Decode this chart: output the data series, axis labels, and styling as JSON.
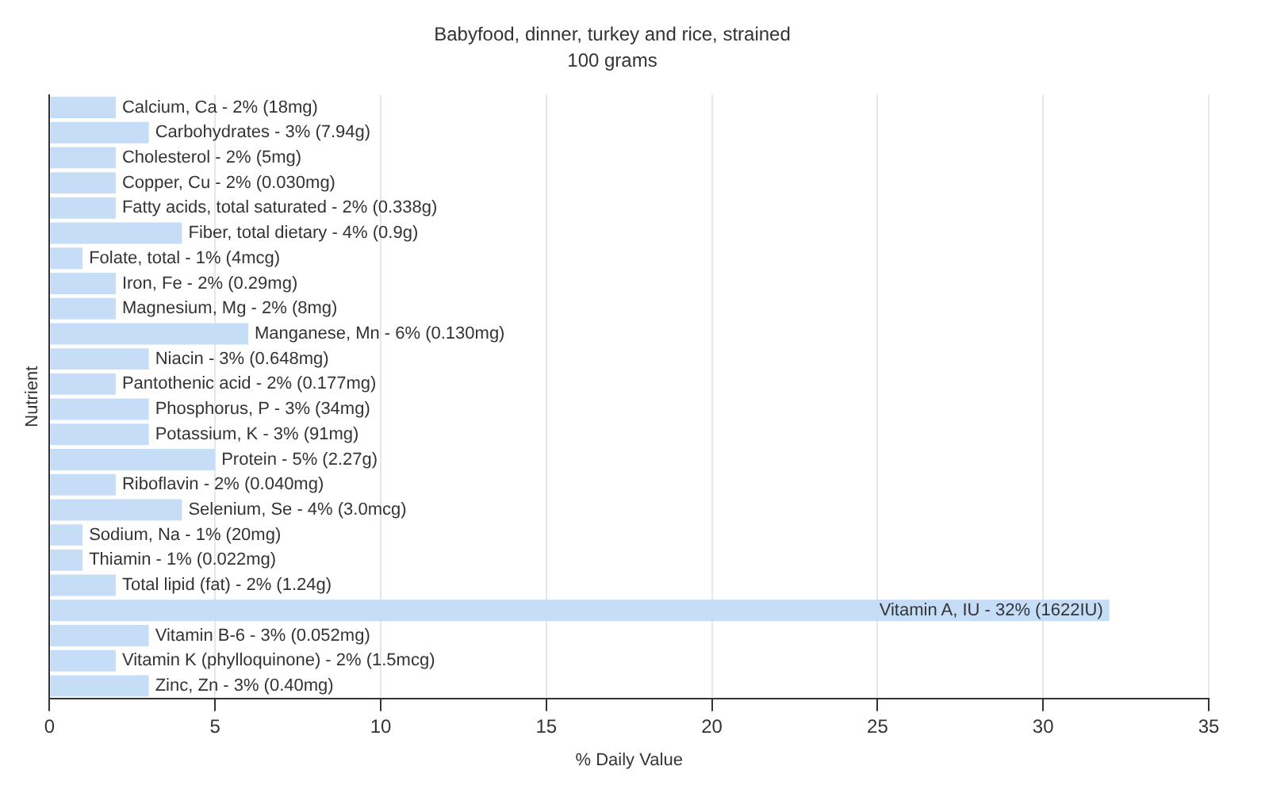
{
  "chart_data": {
    "type": "bar",
    "orientation": "horizontal",
    "title": "Babyfood, dinner, turkey and rice, strained",
    "subtitle": "100 grams",
    "xlabel": "% Daily Value",
    "ylabel": "Nutrient",
    "values": [
      2,
      3,
      2,
      2,
      2,
      4,
      1,
      2,
      2,
      6,
      3,
      2,
      3,
      3,
      5,
      2,
      4,
      1,
      1,
      2,
      32,
      3,
      2,
      3
    ],
    "tick_labels": "x",
    "categories": [
      "Calcium, Ca - 2% (18mg)",
      "Carbohydrates - 3% (7.94g)",
      "Cholesterol - 2% (5mg)",
      "Copper, Cu - 2% (0.030mg)",
      "Fatty acids, total saturated - 2% (0.338g)",
      "Fiber, total dietary - 4% (0.9g)",
      "Folate, total - 1% (4mcg)",
      "Iron, Fe - 2% (0.29mg)",
      "Magnesium, Mg - 2% (8mg)",
      "Manganese, Mn - 6% (0.130mg)",
      "Niacin - 3% (0.648mg)",
      "Pantothenic acid - 2% (0.177mg)",
      "Phosphorus, P - 3% (34mg)",
      "Potassium, K - 3% (91mg)",
      "Protein - 5% (2.27g)",
      "Riboflavin - 2% (0.040mg)",
      "Selenium, Se - 4% (3.0mcg)",
      "Sodium, Na - 1% (20mg)",
      "Thiamin - 1% (0.022mg)",
      "Total lipid (fat) - 2% (1.24g)",
      "Vitamin A, IU - 32% (1622IU)",
      "Vitamin B-6 - 3% (0.052mg)",
      "Vitamin K (phylloquinone) - 2% (1.5mcg)",
      "Zinc, Zn - 3% (0.40mg)"
    ],
    "color": "#c6ddf8",
    "xlim": [
      0,
      35
    ],
    "xticks": [
      0,
      5,
      10,
      15,
      20,
      25,
      30,
      35
    ],
    "grid": "x",
    "legend": false
  }
}
